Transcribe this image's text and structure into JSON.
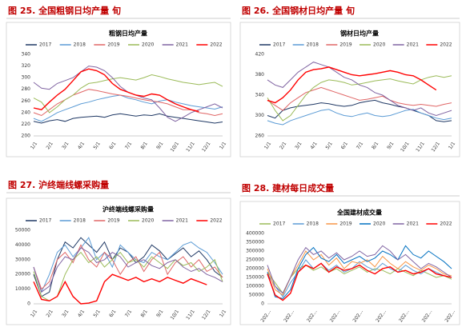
{
  "chart_data": [
    {
      "type": "line",
      "caption": "图 25. 全国粗钢日均产量  旬",
      "title": "粗钢日均产量",
      "categories": [
        "1/1",
        null,
        "2/1",
        null,
        "3/1",
        null,
        "4/1",
        null,
        "5/1",
        null,
        "6/1",
        null,
        "7/1",
        null,
        "8/1",
        null,
        "9/1",
        null,
        "10/1",
        null,
        "11/1",
        null,
        "12/1",
        null,
        "1/1"
      ],
      "ylim": [
        200,
        340
      ],
      "yticks": [
        200,
        220,
        240,
        260,
        280,
        300,
        320,
        340
      ],
      "series": [
        {
          "name": "2017",
          "color": "#1f3864",
          "values": [
            225,
            222,
            226,
            228,
            225,
            230,
            232,
            233,
            234,
            232,
            236,
            238,
            236,
            234,
            236,
            235,
            238,
            234,
            232,
            230,
            228,
            226,
            224,
            222,
            224
          ]
        },
        {
          "name": "2018",
          "color": "#5b9bd5",
          "values": [
            230,
            225,
            232,
            240,
            245,
            250,
            255,
            258,
            262,
            265,
            268,
            270,
            265,
            262,
            258,
            255,
            260,
            262,
            258,
            255,
            252,
            250,
            248,
            246,
            250
          ]
        },
        {
          "name": "2019",
          "color": "#e06666",
          "values": [
            240,
            235,
            245,
            255,
            262,
            270,
            275,
            280,
            278,
            275,
            272,
            270,
            268,
            265,
            262,
            260,
            258,
            255,
            250,
            245,
            245,
            240,
            238,
            235,
            238
          ]
        },
        {
          "name": "2020",
          "color": "#9bbb59",
          "values": [
            265,
            258,
            240,
            250,
            262,
            270,
            282,
            290,
            292,
            295,
            298,
            300,
            298,
            296,
            300,
            305,
            302,
            298,
            295,
            292,
            290,
            288,
            290,
            292,
            285
          ]
        },
        {
          "name": "2021",
          "color": "#8064a2",
          "values": [
            292,
            282,
            280,
            290,
            295,
            300,
            310,
            320,
            318,
            312,
            300,
            285,
            275,
            270,
            265,
            262,
            248,
            232,
            225,
            232,
            240,
            245,
            250,
            255,
            248
          ]
        },
        {
          "name": "2022",
          "color": "#ff0000",
          "values": [
            248,
            245,
            258,
            270,
            280,
            295,
            310,
            315,
            312,
            305,
            290,
            280,
            275,
            270,
            268,
            272,
            270,
            262,
            255,
            250,
            245,
            242,
            null,
            null,
            null
          ]
        }
      ]
    },
    {
      "type": "line",
      "caption": "图 26. 全国钢材日均产量  旬",
      "title": "钢材日均产量",
      "categories": [
        "1/1",
        null,
        "2/1",
        null,
        "3/1",
        null,
        "4/1",
        null,
        "5/1",
        null,
        "6/1",
        null,
        "7/1",
        null,
        "8/1",
        null,
        "9/1",
        null,
        "10/1",
        null,
        "11/1",
        null,
        "12/1",
        null,
        "1/1"
      ],
      "ylim": [
        260,
        420
      ],
      "yticks": [
        260,
        300,
        340,
        380,
        420
      ],
      "series": [
        {
          "name": "2017",
          "color": "#1f3864",
          "values": [
            300,
            295,
            310,
            315,
            318,
            320,
            322,
            325,
            323,
            320,
            318,
            320,
            325,
            328,
            330,
            325,
            322,
            318,
            315,
            310,
            305,
            300,
            290,
            288,
            290
          ]
        },
        {
          "name": "2018",
          "color": "#5b9bd5",
          "values": [
            290,
            285,
            282,
            290,
            295,
            300,
            305,
            310,
            312,
            305,
            300,
            298,
            302,
            305,
            300,
            298,
            300,
            305,
            310,
            312,
            305,
            300,
            295,
            292,
            295
          ]
        },
        {
          "name": "2019",
          "color": "#e06666",
          "values": [
            330,
            320,
            310,
            325,
            335,
            345,
            350,
            355,
            350,
            345,
            340,
            335,
            330,
            332,
            335,
            338,
            330,
            325,
            322,
            320,
            322,
            320,
            318,
            322,
            325
          ]
        },
        {
          "name": "2020",
          "color": "#9bbb59",
          "values": [
            335,
            310,
            290,
            300,
            320,
            340,
            355,
            365,
            370,
            368,
            365,
            360,
            362,
            365,
            368,
            370,
            372,
            368,
            365,
            362,
            370,
            375,
            378,
            375,
            378
          ]
        },
        {
          "name": "2021",
          "color": "#8064a2",
          "values": [
            370,
            360,
            355,
            370,
            385,
            395,
            405,
            400,
            395,
            385,
            375,
            370,
            360,
            355,
            345,
            340,
            330,
            320,
            315,
            310,
            315,
            305,
            300,
            305,
            310
          ]
        },
        {
          "name": "2022",
          "color": "#ff0000",
          "values": [
            330,
            325,
            335,
            350,
            370,
            385,
            390,
            392,
            395,
            390,
            385,
            380,
            378,
            380,
            382,
            385,
            388,
            385,
            380,
            378,
            370,
            360,
            350,
            null,
            null
          ]
        }
      ]
    },
    {
      "type": "line",
      "caption": "图 27. 沪终端线螺采购量",
      "title": "沪终端线螺采购量",
      "categories": [
        "1/1",
        null,
        "2/1",
        null,
        "3/1",
        null,
        "4/1",
        null,
        "5/1",
        null,
        "6/1",
        null,
        "7/1",
        null,
        "8/1",
        null,
        "9/1",
        null,
        "10/1",
        null,
        "11/1",
        null,
        "12/1",
        null,
        "1/1"
      ],
      "ylim": [
        0,
        50000
      ],
      "yticks": [
        0,
        10000,
        20000,
        30000,
        40000,
        50000
      ],
      "series": [
        {
          "name": "2017",
          "color": "#1f3864",
          "values": [
            20000,
            5000,
            8000,
            30000,
            42000,
            38000,
            45000,
            40000,
            35000,
            42000,
            30000,
            38000,
            35000,
            28000,
            32000,
            40000,
            36000,
            30000,
            34000,
            38000,
            32000,
            36000,
            30000,
            22000,
            18000
          ]
        },
        {
          "name": "2018",
          "color": "#5b9bd5",
          "values": [
            25000,
            8000,
            20000,
            35000,
            40000,
            32000,
            38000,
            45000,
            30000,
            35000,
            25000,
            40000,
            35000,
            30000,
            28000,
            35000,
            32000,
            30000,
            35000,
            40000,
            42000,
            38000,
            35000,
            28000,
            20000
          ]
        },
        {
          "name": "2019",
          "color": "#e06666",
          "values": [
            25000,
            10000,
            15000,
            30000,
            35000,
            28000,
            40000,
            30000,
            25000,
            35000,
            30000,
            20000,
            28000,
            32000,
            22000,
            30000,
            35000,
            20000,
            28000,
            32000,
            25000,
            30000,
            22000,
            25000,
            18000
          ]
        },
        {
          "name": "2020",
          "color": "#9bbb59",
          "values": [
            22000,
            5000,
            2000,
            5000,
            20000,
            30000,
            35000,
            28000,
            32000,
            25000,
            30000,
            35000,
            28000,
            30000,
            25000,
            32000,
            28000,
            24000,
            30000,
            26000,
            28000,
            22000,
            25000,
            30000,
            15000
          ]
        },
        {
          "name": "2021",
          "color": "#8064a2",
          "values": [
            25000,
            8000,
            12000,
            25000,
            32000,
            30000,
            38000,
            35000,
            28000,
            30000,
            35000,
            32000,
            25000,
            28000,
            30000,
            26000,
            24000,
            28000,
            30000,
            25000,
            22000,
            24000,
            20000,
            18000,
            15000
          ]
        },
        {
          "name": "2022",
          "color": "#ff0000",
          "values": [
            15000,
            3000,
            2000,
            5000,
            15000,
            5000,
            0,
            500,
            2000,
            15000,
            20000,
            18000,
            16000,
            18000,
            15000,
            17000,
            15000,
            18000,
            16000,
            14000,
            17000,
            15000,
            13000,
            null,
            null
          ]
        }
      ]
    },
    {
      "type": "line",
      "caption": "图 28. 建材每日成交量",
      "title": "全国建材成交量",
      "categories": [
        "202...",
        null,
        null,
        "202...",
        null,
        null,
        "202...",
        null,
        null,
        "202...",
        null,
        null,
        "202...",
        null,
        null,
        "202...",
        null,
        null,
        "202...",
        null,
        null,
        "202...",
        null,
        null,
        "202..."
      ],
      "ylim": [
        0,
        400000
      ],
      "yticks": [
        0,
        50000,
        100000,
        150000,
        200000,
        250000,
        300000,
        350000,
        400000
      ],
      "series": [
        {
          "name": "2017",
          "color": "#9bbb59",
          "values": [
            180000,
            120000,
            60000,
            150000,
            200000,
            220000,
            190000,
            210000,
            180000,
            200000,
            170000,
            190000,
            210000,
            180000,
            200000,
            190000,
            170000,
            200000,
            180000,
            160000,
            190000,
            170000,
            150000,
            160000,
            140000
          ]
        },
        {
          "name": "2018",
          "color": "#5b9bd5",
          "values": [
            170000,
            100000,
            40000,
            120000,
            180000,
            250000,
            200000,
            230000,
            190000,
            220000,
            180000,
            200000,
            240000,
            210000,
            190000,
            230000,
            200000,
            180000,
            220000,
            190000,
            170000,
            200000,
            180000,
            160000,
            150000
          ]
        },
        {
          "name": "2019",
          "color": "#f79646",
          "values": [
            200000,
            80000,
            50000,
            150000,
            220000,
            300000,
            250000,
            280000,
            220000,
            260000,
            200000,
            240000,
            230000,
            250000,
            210000,
            270000,
            230000,
            200000,
            240000,
            210000,
            190000,
            220000,
            200000,
            170000,
            160000
          ]
        },
        {
          "name": "2020",
          "color": "#0070c0",
          "values": [
            180000,
            40000,
            30000,
            80000,
            200000,
            280000,
            320000,
            260000,
            240000,
            280000,
            230000,
            250000,
            270000,
            240000,
            260000,
            300000,
            280000,
            250000,
            330000,
            280000,
            260000,
            300000,
            270000,
            240000,
            200000
          ]
        },
        {
          "name": "2021",
          "color": "#8064a2",
          "values": [
            220000,
            100000,
            60000,
            150000,
            250000,
            320000,
            280000,
            300000,
            260000,
            290000,
            250000,
            270000,
            300000,
            270000,
            280000,
            330000,
            300000,
            250000,
            280000,
            240000,
            200000,
            230000,
            210000,
            180000,
            150000
          ]
        },
        {
          "name": "2022",
          "color": "#ff0000",
          "values": [
            170000,
            50000,
            20000,
            60000,
            180000,
            220000,
            200000,
            230000,
            180000,
            210000,
            190000,
            200000,
            220000,
            190000,
            170000,
            200000,
            210000,
            180000,
            190000,
            170000,
            180000,
            200000,
            170000,
            160000,
            150000
          ]
        }
      ]
    }
  ]
}
